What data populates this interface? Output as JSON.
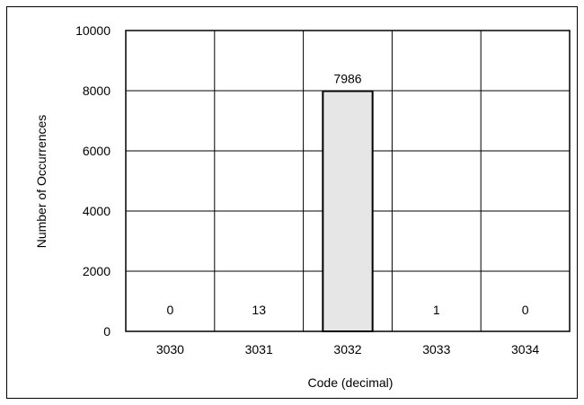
{
  "chart_data": {
    "type": "bar",
    "categories": [
      "3030",
      "3031",
      "3032",
      "3033",
      "3034"
    ],
    "values": [
      0,
      13,
      7986,
      1,
      0
    ],
    "data_labels": [
      "0",
      "13",
      "7986",
      "1",
      "0"
    ],
    "title": "",
    "xlabel": "Code (decimal)",
    "ylabel": "Number of Occurrences",
    "ylim": [
      0,
      10000
    ],
    "yticks": [
      "0",
      "2000",
      "4000",
      "6000",
      "8000",
      "10000"
    ],
    "grid": true,
    "bar_color": "#e6e6e6",
    "bar_edge_color": "#000000"
  }
}
